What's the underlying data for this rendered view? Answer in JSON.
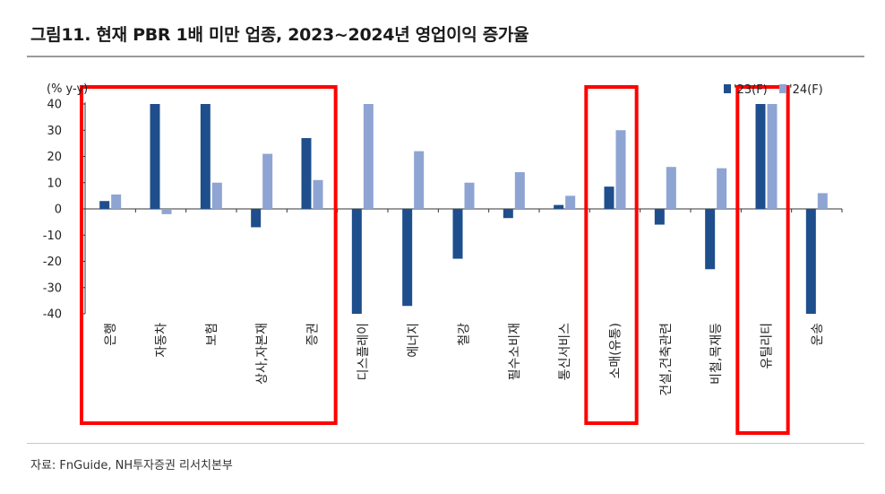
{
  "header": {
    "title": "그림11. 현재 PBR 1배 미만 업종, 2023~2024년 영업이익 증가율"
  },
  "footer": {
    "source": "자료: FnGuide, NH투자증권 리서치본부"
  },
  "colors": {
    "series_2023": "#1f4e8c",
    "series_2024": "#8ea4d2",
    "highlight": "#ff0000",
    "axis": "#333333"
  },
  "chart_data": {
    "type": "bar",
    "ylabel": "(% y-y)",
    "ylim": [
      -40,
      40
    ],
    "yticks": [
      40,
      30,
      20,
      10,
      0,
      -10,
      -20,
      -30,
      -40
    ],
    "legend_position": "top-right",
    "categories": [
      "은행",
      "자동차",
      "보험",
      "상사,자본재",
      "증권",
      "디스플레이",
      "에너지",
      "철강",
      "필수소비재",
      "통신서비스",
      "소매(유통)",
      "건설,건축관련",
      "비철,목재등",
      "유틸리티",
      "운송"
    ],
    "series": [
      {
        "name": "'23(F)",
        "values": [
          3,
          40,
          40,
          -7,
          27,
          -40,
          -37,
          -19,
          -3.5,
          1.5,
          8.5,
          -6,
          -23,
          40,
          -40
        ]
      },
      {
        "name": "'24(F)",
        "values": [
          5.5,
          -2,
          10,
          21,
          11,
          40,
          22,
          10,
          14,
          5,
          30,
          16,
          15.5,
          40,
          6
        ]
      }
    ],
    "highlight_groups": [
      [
        "은행",
        "자동차",
        "보험",
        "상사,자본재",
        "증권"
      ],
      [
        "소매(유통)"
      ],
      [
        "유틸리티"
      ]
    ]
  }
}
